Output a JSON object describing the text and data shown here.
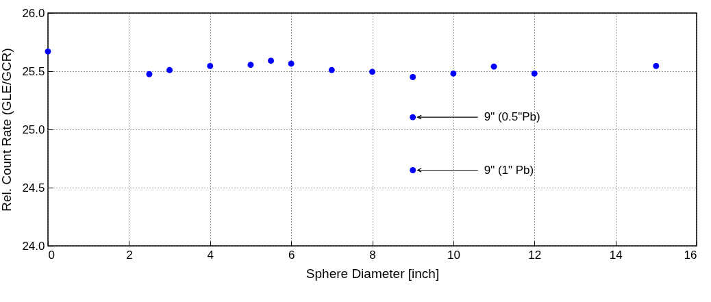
{
  "chart_data": {
    "type": "scatter",
    "xlabel": "Sphere Diameter [inch]",
    "ylabel": "Rel. Count Rate (GLE/GCR)",
    "x": [
      0,
      2.5,
      3,
      4,
      5,
      5.5,
      6,
      7,
      8,
      9,
      10,
      11,
      12,
      15,
      9,
      9
    ],
    "series": [
      {
        "color": "#0000ff",
        "values": [
          25.67,
          25.475,
          25.51,
          25.545,
          25.555,
          25.59,
          25.565,
          25.51,
          25.495,
          25.45,
          25.48,
          25.54,
          25.48,
          25.545,
          25.105,
          24.65
        ]
      }
    ],
    "xlim": [
      0,
      16
    ],
    "xticks": [
      0,
      2,
      4,
      6,
      8,
      10,
      12,
      14,
      16
    ],
    "ylim": [
      24.0,
      26.0
    ],
    "yticks": [
      {
        "value": 24.0,
        "label": "24.0"
      },
      {
        "value": 24.5,
        "label": "24.5"
      },
      {
        "value": 25.0,
        "label": "25.0"
      },
      {
        "value": 25.5,
        "label": "25.5"
      },
      {
        "value": 26.0,
        "label": "26.0"
      }
    ],
    "grid": true,
    "marker": "circle",
    "legend": false,
    "annotations": [
      {
        "text": "9\" (0.5\"Pb)",
        "x": 9,
        "y": 25.105
      },
      {
        "text": "9\" (1\" Pb)",
        "x": 9,
        "y": 24.65
      }
    ]
  }
}
